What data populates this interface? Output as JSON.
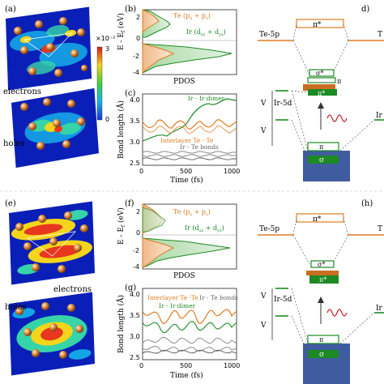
{
  "panels": {
    "a": "(a)",
    "b": "(b)",
    "c": "(c)",
    "d": "d)",
    "e": "(e)",
    "f": "(f)",
    "g": "(g)",
    "h": "(h)"
  },
  "maps": {
    "scale_label": "×10⁻²",
    "scale_top": "3",
    "scale_bottom": "0",
    "electrons": "electrons",
    "holes": "holes"
  },
  "pdos": {
    "ylabel_prefix": "E - E",
    "ylabel_sub": "f",
    "ylabel_unit": " (eV)",
    "xlabel": "PDOS",
    "te_base": "Te (p",
    "te_sub1": "x",
    "te_plus": " + p",
    "te_sub2": "z",
    "te_end": ")",
    "ir_base": "Ir (d",
    "ir_sub1": "xz",
    "ir_plus": " + d",
    "ir_sub2": "yz",
    "ir_end": ")",
    "yticks": [
      "2",
      "0",
      "-2",
      "-4"
    ]
  },
  "bond": {
    "ylabel": "Bond length (Å)",
    "xlabel": "Time (fs)",
    "xticks": [
      "0",
      "500",
      "1000"
    ],
    "yticks": [
      "4.0",
      "3.5",
      "3.0",
      "2.5"
    ],
    "ir_ir": "Ir - Ir dimer",
    "te_te": "Interlayer Te - Te",
    "ir_te": "Ir - Te bonds"
  },
  "levels": {
    "pi_star": "π*",
    "sigma_star": "σ*",
    "pi": "π",
    "sigma": "σ",
    "te5p": "Te-5p",
    "ir5d": "Ir-5d",
    "v": "V",
    "t": "T",
    "ir_right": "Ir"
  },
  "colors": {
    "te": "#e07b1f",
    "ir": "#1d8a24",
    "gray": "#8a8a8a",
    "navy": "#1f3f8f",
    "red": "#c8202a"
  },
  "chart_data": [
    {
      "panel": "c",
      "type": "line",
      "xlabel": "Time (fs)",
      "ylabel": "Bond length (Å)",
      "xlim": [
        0,
        1000
      ],
      "ylim": [
        2.5,
        4.2
      ],
      "series": [
        {
          "name": "Ir - Ir dimer",
          "x": [
            0,
            100,
            200,
            300,
            400,
            500,
            600,
            700,
            800,
            900,
            1000
          ],
          "y": [
            3.05,
            3.15,
            3.2,
            3.3,
            3.5,
            3.7,
            3.85,
            3.9,
            3.8,
            3.95,
            3.9
          ]
        },
        {
          "name": "Interlayer Te - Te",
          "x": [
            0,
            100,
            200,
            300,
            400,
            500,
            600,
            700,
            800,
            900,
            1000
          ],
          "y": [
            3.5,
            3.3,
            3.55,
            3.3,
            3.55,
            3.35,
            3.55,
            3.3,
            3.5,
            3.35,
            3.5
          ]
        },
        {
          "name": "Ir - Te bonds",
          "x": [
            0,
            100,
            200,
            300,
            400,
            500,
            600,
            700,
            800,
            900,
            1000
          ],
          "y": [
            2.65,
            2.75,
            2.6,
            2.75,
            2.62,
            2.76,
            2.6,
            2.74,
            2.63,
            2.75,
            2.65
          ]
        }
      ]
    },
    {
      "panel": "g",
      "type": "line",
      "xlabel": "Time (fs)",
      "ylabel": "Bond length (Å)",
      "xlim": [
        0,
        1000
      ],
      "ylim": [
        2.5,
        4.2
      ],
      "series": [
        {
          "name": "Interlayer Te -Te",
          "x": [
            0,
            100,
            200,
            300,
            400,
            500,
            600,
            700,
            800,
            900,
            1000
          ],
          "y": [
            3.6,
            3.3,
            3.8,
            3.2,
            3.9,
            3.3,
            3.7,
            3.1,
            3.8,
            3.4,
            3.6
          ]
        },
        {
          "name": "Ir - Ir dimer",
          "x": [
            0,
            100,
            200,
            300,
            400,
            500,
            600,
            700,
            800,
            900,
            1000
          ],
          "y": [
            3.3,
            3.0,
            3.5,
            3.1,
            3.6,
            3.0,
            3.4,
            2.9,
            3.5,
            3.1,
            3.3
          ]
        },
        {
          "name": "Ir - Te bonds",
          "x": [
            0,
            100,
            200,
            300,
            400,
            500,
            600,
            700,
            800,
            900,
            1000
          ],
          "y": [
            2.7,
            2.9,
            2.6,
            3.0,
            2.7,
            2.9,
            2.6,
            3.0,
            2.8,
            2.9,
            2.7
          ]
        }
      ]
    }
  ]
}
